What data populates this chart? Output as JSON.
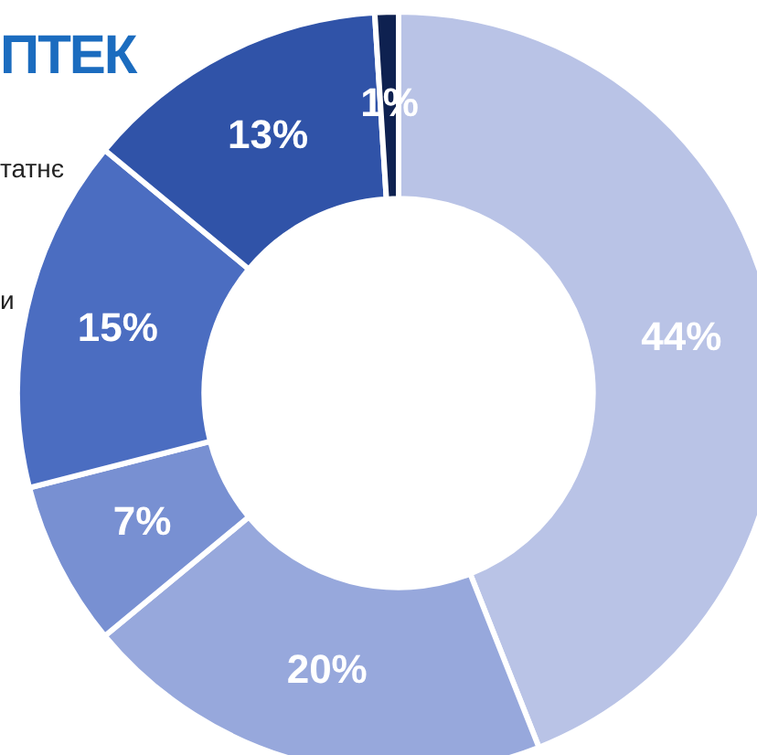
{
  "chart_data": {
    "type": "donut",
    "title": "ПТЕК",
    "annotations": [
      "татнє",
      "и"
    ],
    "categories": [
      null,
      null,
      null,
      null,
      null,
      null
    ],
    "values": [
      44,
      20,
      7,
      15,
      13,
      1
    ],
    "colors": [
      "#b9c3e6",
      "#97a8dc",
      "#7890d2",
      "#4b6dc1",
      "#3053a8",
      "#0e2150"
    ],
    "value_labels": [
      "44%",
      "20%",
      "7%",
      "15%",
      "13%",
      "1%"
    ],
    "legend": false
  }
}
